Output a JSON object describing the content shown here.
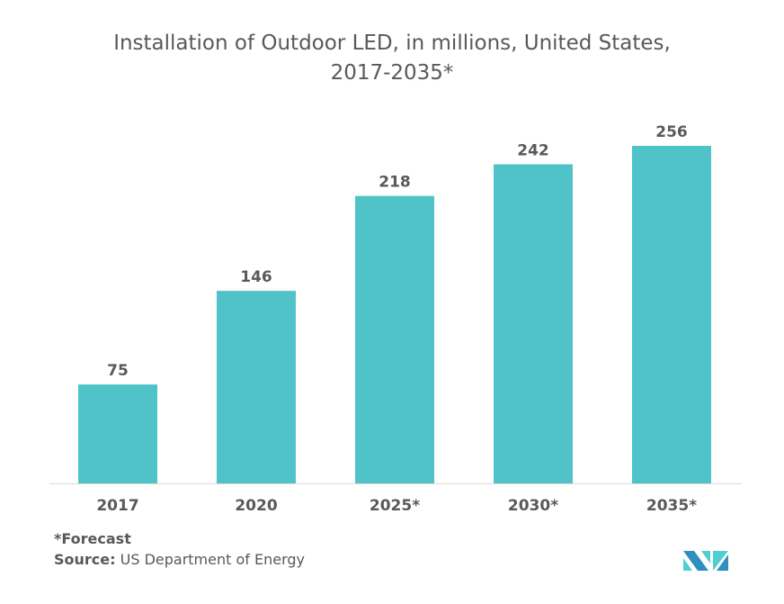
{
  "chart_data": {
    "type": "bar",
    "title_line1": "Installation of Outdoor LED, in millions, United States,",
    "title_line2": "2017-2035*",
    "categories": [
      "2017",
      "2020",
      "2025*",
      "2030*",
      "2035*"
    ],
    "values": [
      75,
      146,
      218,
      242,
      256
    ],
    "xlabel": "",
    "ylabel": "",
    "ylim": [
      0,
      256
    ],
    "grid": false,
    "bar_color": "#4FC3C8"
  },
  "footer": {
    "forecast_note": "*Forecast",
    "source_label": "Source:",
    "source_text": "US Department of Energy"
  },
  "colors": {
    "text": "#595959",
    "axis": "#D9D9D9",
    "logo_dark": "#2E8FC0",
    "logo_light": "#4FCFD1"
  }
}
